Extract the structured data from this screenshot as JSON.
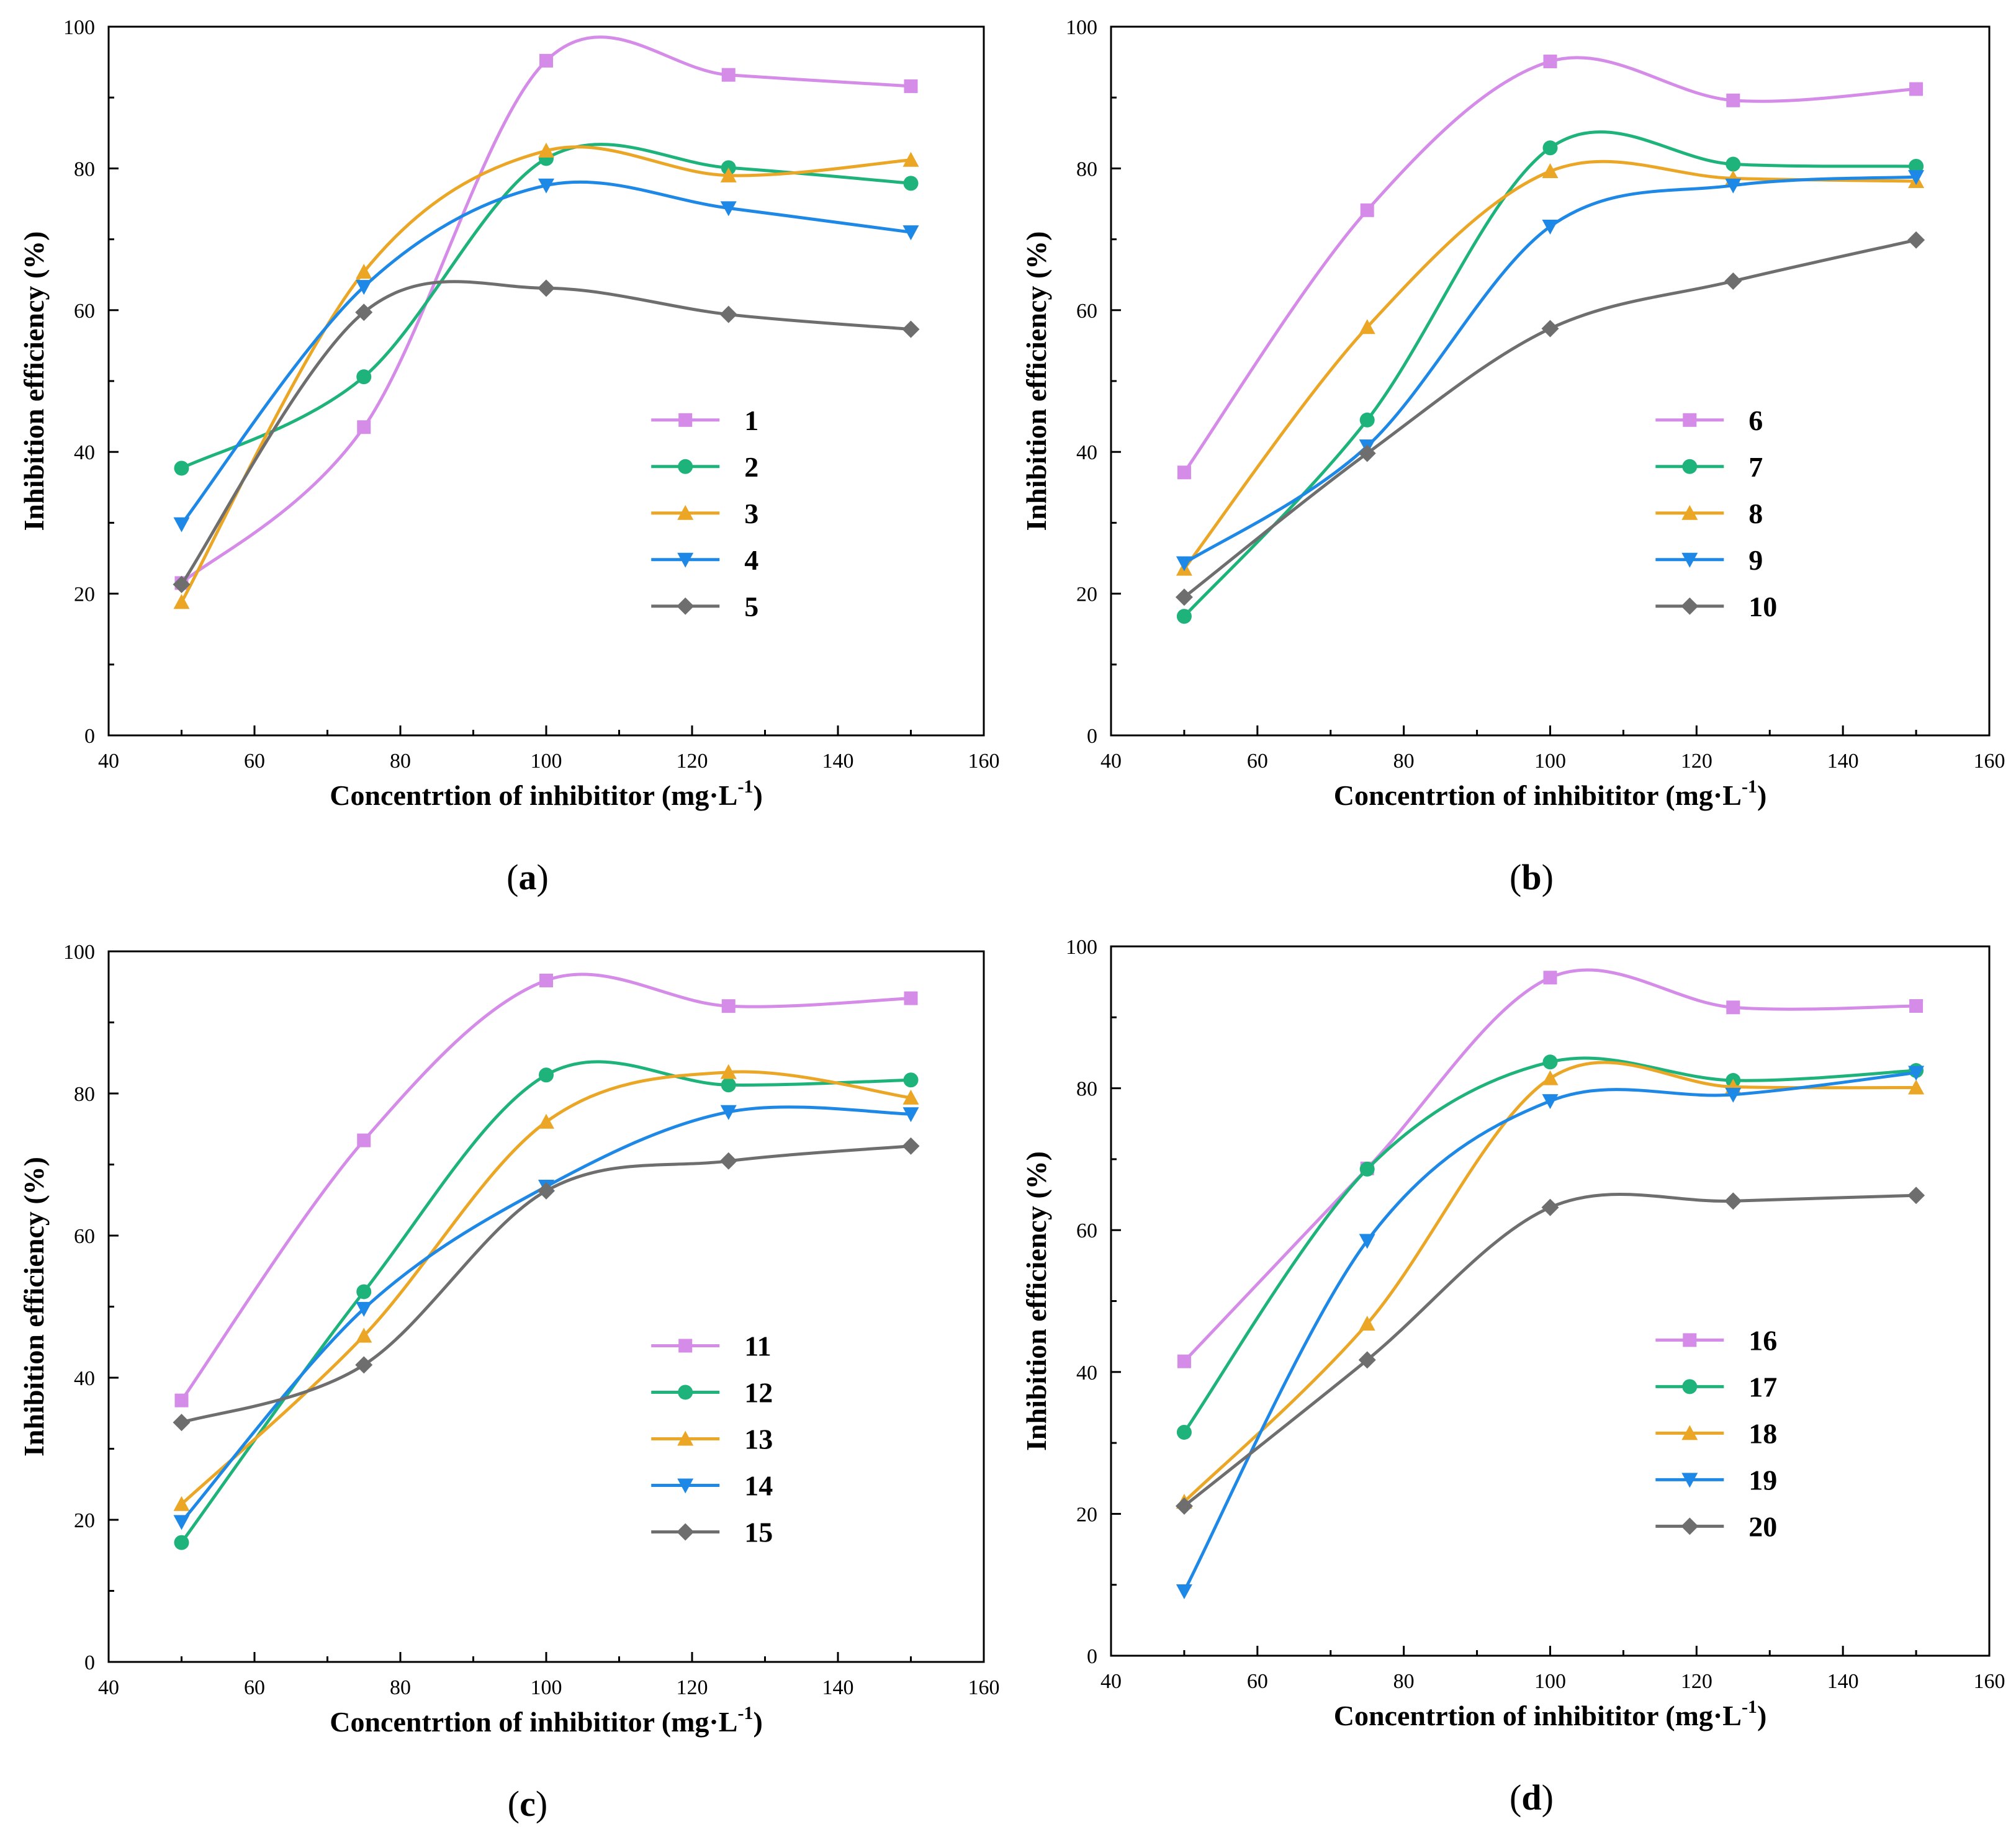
{
  "figure": {
    "colors": {
      "axis": "#000000",
      "series": [
        "#d58be8",
        "#1db37a",
        "#eaa624",
        "#1e88e6",
        "#6e6e6e"
      ]
    },
    "marker_shapes": [
      "square",
      "circle",
      "triangle-up",
      "triangle-down",
      "diamond"
    ]
  },
  "chart_data": [
    {
      "type": "line",
      "panel_label": "a",
      "xlabel": "Concentrtion of inhibititor (mg·L",
      "xlabel_sup": "-1",
      "xlabel_end": ")",
      "ylabel": "Inhibition efficiency (%)",
      "xlim": [
        40,
        160
      ],
      "ylim": [
        0,
        100
      ],
      "xticks": [
        40,
        60,
        80,
        100,
        120,
        140,
        160
      ],
      "yticks": [
        0,
        20,
        40,
        60,
        80,
        100
      ],
      "grid": false,
      "legend_position": "lower-right",
      "x": [
        50,
        75,
        100,
        125,
        150
      ],
      "series": [
        {
          "name": "1",
          "values": [
            21.5,
            43.5,
            95.2,
            93.2,
            91.6
          ]
        },
        {
          "name": "2",
          "values": [
            37.7,
            50.6,
            81.4,
            80.1,
            77.9
          ]
        },
        {
          "name": "3",
          "values": [
            18.8,
            65.4,
            82.5,
            79.0,
            81.2
          ]
        },
        {
          "name": "4",
          "values": [
            29.8,
            63.3,
            77.6,
            74.4,
            71.0
          ]
        },
        {
          "name": "5",
          "values": [
            21.3,
            59.7,
            63.1,
            59.4,
            57.3
          ]
        }
      ]
    },
    {
      "type": "line",
      "panel_label": "b",
      "xlabel": "Concentrtion of inhibititor (mg·L",
      "xlabel_sup": "-1",
      "xlabel_end": ")",
      "ylabel": "Inhibition efficiency (%)",
      "xlim": [
        40,
        160
      ],
      "ylim": [
        0,
        100
      ],
      "xticks": [
        40,
        60,
        80,
        100,
        120,
        140,
        160
      ],
      "yticks": [
        0,
        20,
        40,
        60,
        80,
        100
      ],
      "grid": false,
      "legend_position": "lower-right",
      "x": [
        50,
        75,
        100,
        125,
        150
      ],
      "series": [
        {
          "name": "6",
          "values": [
            37.1,
            74.1,
            95.1,
            89.6,
            91.2
          ]
        },
        {
          "name": "7",
          "values": [
            16.8,
            44.5,
            82.9,
            80.6,
            80.3
          ]
        },
        {
          "name": "8",
          "values": [
            23.5,
            57.6,
            79.6,
            78.6,
            78.2
          ]
        },
        {
          "name": "9",
          "values": [
            24.3,
            40.8,
            71.8,
            77.6,
            78.8
          ]
        },
        {
          "name": "10",
          "values": [
            19.5,
            39.8,
            57.4,
            64.1,
            69.9
          ]
        }
      ]
    },
    {
      "type": "line",
      "panel_label": "c",
      "xlabel": "Concentrtion of inhibititor (mg·L",
      "xlabel_sup": "-1",
      "xlabel_end": ")",
      "ylabel": "Inhibition efficiency (%)",
      "xlim": [
        40,
        160
      ],
      "ylim": [
        0,
        100
      ],
      "xticks": [
        40,
        60,
        80,
        100,
        120,
        140,
        160
      ],
      "yticks": [
        0,
        20,
        40,
        60,
        80,
        100
      ],
      "grid": false,
      "legend_position": "lower-right",
      "x": [
        50,
        75,
        100,
        125,
        150
      ],
      "series": [
        {
          "name": "11",
          "values": [
            36.8,
            73.4,
            95.9,
            92.3,
            93.4
          ]
        },
        {
          "name": "12",
          "values": [
            16.8,
            52.1,
            82.6,
            81.2,
            81.9
          ]
        },
        {
          "name": "13",
          "values": [
            22.2,
            45.9,
            76.0,
            83.0,
            79.4
          ]
        },
        {
          "name": "14",
          "values": [
            19.7,
            49.7,
            66.9,
            77.4,
            77.1
          ]
        },
        {
          "name": "15",
          "values": [
            33.7,
            41.8,
            66.3,
            70.5,
            72.6
          ]
        }
      ]
    },
    {
      "type": "line",
      "panel_label": "d",
      "xlabel": "Concentrtion of inhibititor (mg·L",
      "xlabel_sup": "-1",
      "xlabel_end": ")",
      "ylabel": "Inhibition efficiency (%)",
      "xlim": [
        40,
        160
      ],
      "ylim": [
        0,
        100
      ],
      "xticks": [
        40,
        60,
        80,
        100,
        120,
        140,
        160
      ],
      "yticks": [
        0,
        20,
        40,
        60,
        80,
        100
      ],
      "grid": false,
      "legend_position": "lower-right",
      "x": [
        50,
        75,
        100,
        125,
        150
      ],
      "series": [
        {
          "name": "16",
          "values": [
            41.5,
            68.7,
            95.6,
            91.4,
            91.6
          ]
        },
        {
          "name": "17",
          "values": [
            31.5,
            68.6,
            83.7,
            81.1,
            82.5
          ]
        },
        {
          "name": "18",
          "values": [
            21.7,
            46.8,
            81.4,
            80.2,
            80.1
          ]
        },
        {
          "name": "19",
          "values": [
            9.1,
            58.5,
            78.2,
            79.1,
            82.2
          ]
        },
        {
          "name": "20",
          "values": [
            21.1,
            41.7,
            63.2,
            64.1,
            64.9
          ]
        }
      ]
    }
  ]
}
